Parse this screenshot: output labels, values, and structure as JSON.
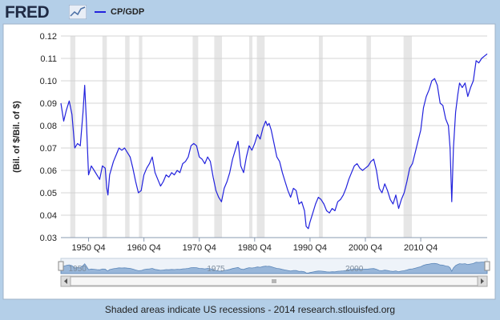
{
  "logo": {
    "text": "FRED"
  },
  "chart_data": {
    "type": "line",
    "series": [
      {
        "name": "CP/GDP",
        "color": "#2222dd",
        "points": [
          [
            1947.0,
            0.09
          ],
          [
            1947.5,
            0.082
          ],
          [
            1948.0,
            0.087
          ],
          [
            1948.5,
            0.091
          ],
          [
            1949.0,
            0.085
          ],
          [
            1949.5,
            0.07
          ],
          [
            1950.0,
            0.072
          ],
          [
            1950.5,
            0.071
          ],
          [
            1951.0,
            0.086
          ],
          [
            1951.3,
            0.098
          ],
          [
            1951.6,
            0.082
          ],
          [
            1952.0,
            0.058
          ],
          [
            1952.5,
            0.062
          ],
          [
            1953.0,
            0.06
          ],
          [
            1953.5,
            0.058
          ],
          [
            1954.0,
            0.056
          ],
          [
            1954.5,
            0.062
          ],
          [
            1955.0,
            0.061
          ],
          [
            1955.3,
            0.052
          ],
          [
            1955.5,
            0.049
          ],
          [
            1955.8,
            0.058
          ],
          [
            1956.5,
            0.064
          ],
          [
            1957.0,
            0.067
          ],
          [
            1957.5,
            0.07
          ],
          [
            1958.0,
            0.069
          ],
          [
            1958.5,
            0.07
          ],
          [
            1959.0,
            0.068
          ],
          [
            1959.5,
            0.066
          ],
          [
            1960.0,
            0.061
          ],
          [
            1960.5,
            0.055
          ],
          [
            1961.0,
            0.05
          ],
          [
            1961.5,
            0.051
          ],
          [
            1962.0,
            0.058
          ],
          [
            1962.5,
            0.061
          ],
          [
            1963.0,
            0.063
          ],
          [
            1963.5,
            0.066
          ],
          [
            1964.0,
            0.059
          ],
          [
            1964.5,
            0.056
          ],
          [
            1965.0,
            0.053
          ],
          [
            1965.5,
            0.055
          ],
          [
            1966.0,
            0.058
          ],
          [
            1966.5,
            0.057
          ],
          [
            1967.0,
            0.059
          ],
          [
            1967.5,
            0.058
          ],
          [
            1968.0,
            0.06
          ],
          [
            1968.5,
            0.059
          ],
          [
            1969.0,
            0.063
          ],
          [
            1969.5,
            0.064
          ],
          [
            1970.0,
            0.066
          ],
          [
            1970.5,
            0.071
          ],
          [
            1971.0,
            0.072
          ],
          [
            1971.5,
            0.071
          ],
          [
            1972.0,
            0.066
          ],
          [
            1972.5,
            0.065
          ],
          [
            1973.0,
            0.063
          ],
          [
            1973.5,
            0.066
          ],
          [
            1974.0,
            0.064
          ],
          [
            1974.5,
            0.057
          ],
          [
            1975.0,
            0.051
          ],
          [
            1975.5,
            0.048
          ],
          [
            1976.0,
            0.046
          ],
          [
            1976.5,
            0.052
          ],
          [
            1977.0,
            0.055
          ],
          [
            1977.5,
            0.059
          ],
          [
            1978.0,
            0.065
          ],
          [
            1978.5,
            0.069
          ],
          [
            1979.0,
            0.073
          ],
          [
            1979.5,
            0.062
          ],
          [
            1980.0,
            0.059
          ],
          [
            1980.5,
            0.066
          ],
          [
            1981.0,
            0.071
          ],
          [
            1981.5,
            0.069
          ],
          [
            1982.0,
            0.072
          ],
          [
            1982.5,
            0.076
          ],
          [
            1983.0,
            0.074
          ],
          [
            1983.5,
            0.079
          ],
          [
            1984.0,
            0.082
          ],
          [
            1984.3,
            0.08
          ],
          [
            1984.6,
            0.081
          ],
          [
            1985.0,
            0.078
          ],
          [
            1985.5,
            0.072
          ],
          [
            1986.0,
            0.066
          ],
          [
            1986.5,
            0.064
          ],
          [
            1987.0,
            0.059
          ],
          [
            1987.5,
            0.055
          ],
          [
            1988.0,
            0.051
          ],
          [
            1988.5,
            0.048
          ],
          [
            1989.0,
            0.052
          ],
          [
            1989.5,
            0.051
          ],
          [
            1990.0,
            0.045
          ],
          [
            1990.5,
            0.046
          ],
          [
            1991.0,
            0.042
          ],
          [
            1991.3,
            0.035
          ],
          [
            1991.7,
            0.034
          ],
          [
            1992.0,
            0.037
          ],
          [
            1992.5,
            0.041
          ],
          [
            1993.0,
            0.045
          ],
          [
            1993.5,
            0.048
          ],
          [
            1994.0,
            0.047
          ],
          [
            1994.5,
            0.045
          ],
          [
            1995.0,
            0.042
          ],
          [
            1995.5,
            0.041
          ],
          [
            1996.0,
            0.043
          ],
          [
            1996.5,
            0.042
          ],
          [
            1997.0,
            0.046
          ],
          [
            1997.5,
            0.047
          ],
          [
            1998.0,
            0.049
          ],
          [
            1998.5,
            0.052
          ],
          [
            1999.0,
            0.056
          ],
          [
            1999.5,
            0.059
          ],
          [
            2000.0,
            0.062
          ],
          [
            2000.5,
            0.063
          ],
          [
            2001.0,
            0.061
          ],
          [
            2001.5,
            0.06
          ],
          [
            2002.0,
            0.061
          ],
          [
            2002.5,
            0.062
          ],
          [
            2003.0,
            0.064
          ],
          [
            2003.5,
            0.065
          ],
          [
            2004.0,
            0.06
          ],
          [
            2004.5,
            0.052
          ],
          [
            2005.0,
            0.05
          ],
          [
            2005.5,
            0.054
          ],
          [
            2006.0,
            0.051
          ],
          [
            2006.5,
            0.047
          ],
          [
            2007.0,
            0.045
          ],
          [
            2007.5,
            0.049
          ],
          [
            2008.0,
            0.043
          ],
          [
            2008.5,
            0.047
          ],
          [
            2009.0,
            0.05
          ],
          [
            2009.5,
            0.055
          ],
          [
            2010.0,
            0.061
          ],
          [
            2010.5,
            0.063
          ],
          [
            2011.0,
            0.068
          ],
          [
            2011.5,
            0.073
          ],
          [
            2012.0,
            0.078
          ],
          [
            2012.5,
            0.088
          ],
          [
            2013.0,
            0.093
          ],
          [
            2013.5,
            0.096
          ],
          [
            2014.0,
            0.1
          ],
          [
            2014.5,
            0.101
          ],
          [
            2015.0,
            0.098
          ],
          [
            2015.5,
            0.09
          ],
          [
            2016.0,
            0.089
          ],
          [
            2016.5,
            0.083
          ],
          [
            2017.0,
            0.08
          ],
          [
            2017.3,
            0.07
          ],
          [
            2017.6,
            0.046
          ],
          [
            2017.9,
            0.07
          ],
          [
            2018.3,
            0.086
          ],
          [
            2018.7,
            0.094
          ],
          [
            2019.0,
            0.099
          ],
          [
            2019.5,
            0.097
          ],
          [
            2020.0,
            0.099
          ],
          [
            2020.5,
            0.093
          ],
          [
            2021.0,
            0.097
          ],
          [
            2021.5,
            0.1
          ],
          [
            2022.0,
            0.109
          ],
          [
            2022.5,
            0.108
          ],
          [
            2023.0,
            0.11
          ],
          [
            2023.5,
            0.111
          ],
          [
            2024.0,
            0.112
          ]
        ]
      }
    ],
    "x_range": [
      1947.0,
      2024.0
    ],
    "ylim": [
      0.03,
      0.12
    ],
    "y_ticks": [
      0.03,
      0.04,
      0.05,
      0.06,
      0.07,
      0.08,
      0.09,
      0.1,
      0.11,
      0.12
    ],
    "y_tick_labels": [
      "0.03",
      "0.04",
      "0.05",
      "0.06",
      "0.07",
      "0.08",
      "0.09",
      "0.10",
      "0.11",
      "0.12"
    ],
    "x_ticks": [
      {
        "x": 1952.0,
        "label": "1950 Q4"
      },
      {
        "x": 1962.0,
        "label": "1960 Q4"
      },
      {
        "x": 1972.0,
        "label": "1970 Q4"
      },
      {
        "x": 1982.0,
        "label": "1980 Q4"
      },
      {
        "x": 1992.0,
        "label": "1990 Q4"
      },
      {
        "x": 2002.0,
        "label": "2000 Q4"
      },
      {
        "x": 2012.0,
        "label": "2010 Q4"
      }
    ],
    "ylabel": "(Bil. of $/Bil. of $)",
    "grid": true,
    "legend_placement": "top-left",
    "recessions": [
      [
        1948.7,
        1949.6
      ],
      [
        1954.5,
        1955.3
      ],
      [
        1958.6,
        1959.4
      ],
      [
        1961.1,
        1961.7
      ],
      [
        1970.8,
        1971.8
      ],
      [
        1974.7,
        1976.1
      ],
      [
        1981.0,
        1981.6
      ],
      [
        1982.4,
        1983.8
      ],
      [
        1993.6,
        1994.3
      ],
      [
        2002.2,
        2003.0
      ],
      [
        2008.9,
        2010.4
      ]
    ],
    "navigator_labels": [
      {
        "x": 1950.0,
        "label": "1950"
      },
      {
        "x": 1975.0,
        "label": "1975"
      },
      {
        "x": 2000.0,
        "label": "2000"
      }
    ]
  },
  "footer": {
    "text": "Shaded areas indicate US recessions - 2014 research.stlouisfed.org"
  }
}
